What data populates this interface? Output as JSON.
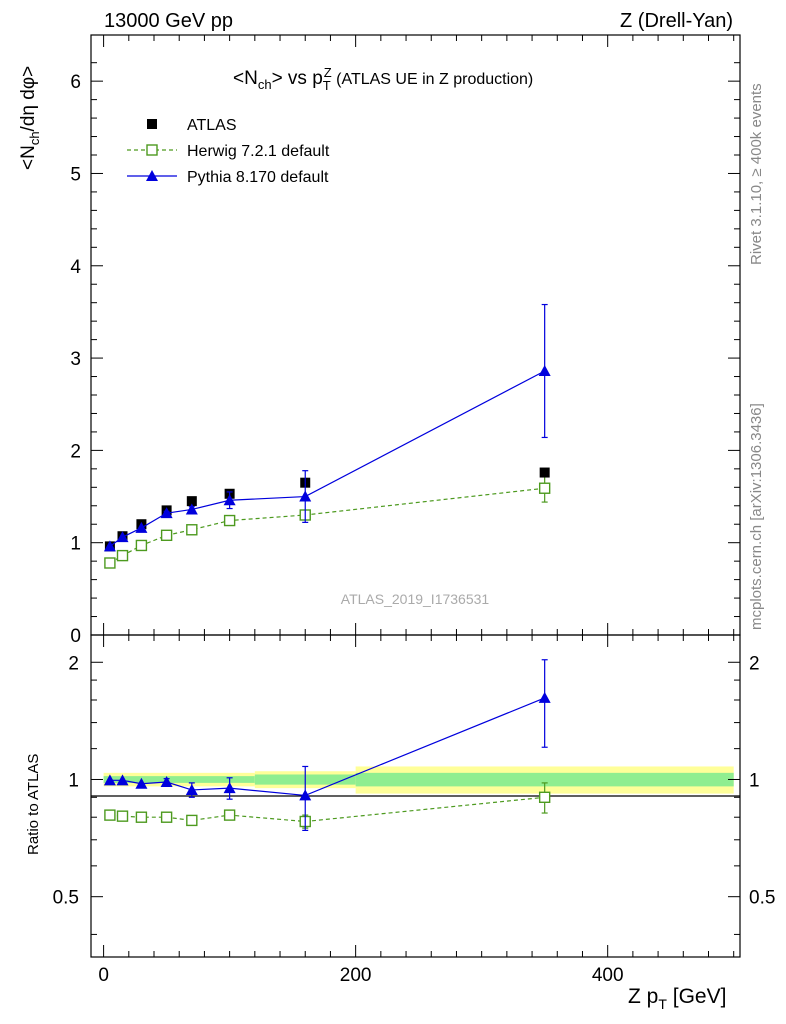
{
  "header": {
    "left": "13000 GeV pp",
    "right": "Z (Drell-Yan)"
  },
  "side_labels": {
    "rivet": "Rivet 3.1.10, ≥ 400k events",
    "mcplots": "mcplots.cern.ch [arXiv:1306.3436]"
  },
  "watermark": "ATLAS_2019_I1736531",
  "colors": {
    "atlas": "#000000",
    "herwig": "#4d9a1f",
    "pythia": "#0000dd",
    "band_inner": "#90ee90",
    "band_outer": "#ffff99"
  },
  "chart_data": [
    {
      "type": "scatter",
      "panel": "main",
      "title_parts": {
        "a": "<N",
        "b": "ch",
        "c": "> vs p",
        "d": "T",
        "e": "Z",
        "f": " (ATLAS UE in Z production)"
      },
      "ylabel_parts": {
        "a": "<N",
        "b": "ch",
        "c": "/dη dφ>"
      },
      "xlim": [
        -10,
        505
      ],
      "ylim": [
        0,
        6.5
      ],
      "yticks": [
        "0",
        "1",
        "2",
        "3",
        "4",
        "5",
        "6"
      ],
      "legend_position": "top-left",
      "series": [
        {
          "name": "ATLAS",
          "style": "square-filled",
          "x": [
            5,
            15,
            30,
            50,
            70,
            100,
            160,
            350
          ],
          "y": [
            0.96,
            1.07,
            1.2,
            1.35,
            1.45,
            1.53,
            1.65,
            1.76
          ],
          "err": [
            0.02,
            0.02,
            0.02,
            0.02,
            0.02,
            0.03,
            0.04,
            0.04
          ]
        },
        {
          "name": "Herwig 7.2.1 default",
          "style": "square-open-dashed",
          "x": [
            5,
            15,
            30,
            50,
            70,
            100,
            160,
            350
          ],
          "y": [
            0.78,
            0.86,
            0.97,
            1.08,
            1.14,
            1.24,
            1.3,
            1.59
          ],
          "err": [
            0.0,
            0.0,
            0.0,
            0.01,
            0.01,
            0.02,
            0.05,
            0.15
          ]
        },
        {
          "name": "Pythia 8.170 default",
          "style": "triangle-solid",
          "x": [
            5,
            15,
            30,
            50,
            70,
            100,
            160,
            350
          ],
          "y": [
            0.96,
            1.06,
            1.16,
            1.32,
            1.36,
            1.46,
            1.5,
            2.86
          ],
          "err": [
            0.0,
            0.0,
            0.0,
            0.02,
            0.03,
            0.09,
            0.28,
            0.72
          ]
        }
      ]
    },
    {
      "type": "scatter",
      "panel": "ratio",
      "ylabel": "Ratio to ATLAS",
      "xlabel_parts": {
        "a": "Z p",
        "b": "T",
        "c": " [GeV]"
      },
      "xlim": [
        -10,
        505
      ],
      "ylim": [
        0.35,
        2.35
      ],
      "yticks": [
        "0.5",
        "1",
        "2"
      ],
      "xticks": [
        "0",
        "200",
        "400"
      ],
      "bands": [
        {
          "xmin": 0,
          "xmax": 120,
          "inner": [
            0.98,
            1.02
          ],
          "outer": [
            0.96,
            1.04
          ]
        },
        {
          "xmin": 120,
          "xmax": 200,
          "inner": [
            0.97,
            1.03
          ],
          "outer": [
            0.95,
            1.05
          ]
        },
        {
          "xmin": 200,
          "xmax": 500,
          "inner": [
            0.96,
            1.04
          ],
          "outer": [
            0.92,
            1.08
          ]
        }
      ],
      "series": [
        {
          "name": "Herwig 7.2.1 default",
          "x": [
            5,
            15,
            30,
            50,
            70,
            100,
            160,
            350
          ],
          "y": [
            0.81,
            0.805,
            0.8,
            0.8,
            0.785,
            0.81,
            0.78,
            0.9
          ],
          "err": [
            0.0,
            0.0,
            0.0,
            0.01,
            0.01,
            0.01,
            0.03,
            0.08
          ]
        },
        {
          "name": "Pythia 8.170 default",
          "x": [
            5,
            15,
            30,
            50,
            70,
            100,
            160,
            350
          ],
          "y": [
            0.995,
            0.995,
            0.975,
            0.985,
            0.94,
            0.95,
            0.91,
            1.62
          ],
          "err": [
            0.0,
            0.0,
            0.0,
            0.02,
            0.04,
            0.06,
            0.17,
            0.41
          ]
        }
      ]
    }
  ]
}
